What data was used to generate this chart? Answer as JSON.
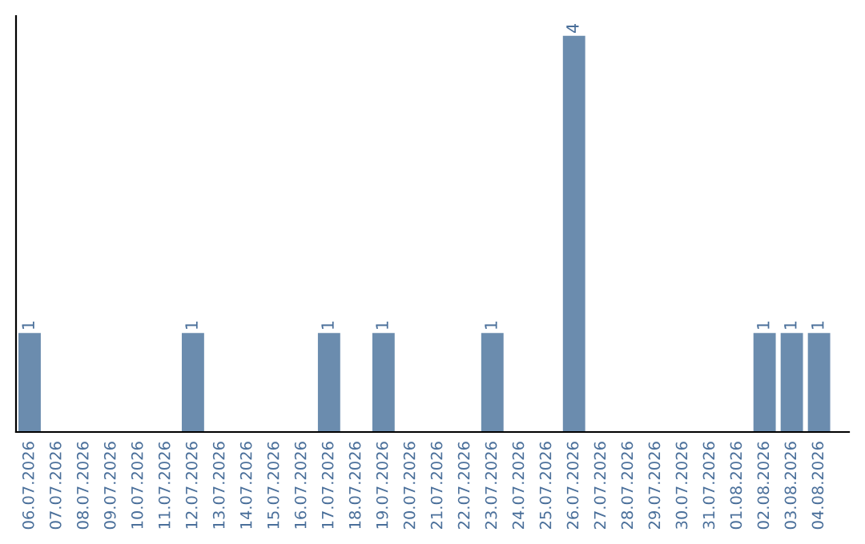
{
  "chart_data": {
    "type": "bar",
    "categories": [
      "06.07.2026",
      "07.07.2026",
      "08.07.2026",
      "09.07.2026",
      "10.07.2026",
      "11.07.2026",
      "12.07.2026",
      "13.07.2026",
      "14.07.2026",
      "15.07.2026",
      "16.07.2026",
      "17.07.2026",
      "18.07.2026",
      "19.07.2026",
      "20.07.2026",
      "21.07.2026",
      "22.07.2026",
      "23.07.2026",
      "24.07.2026",
      "25.07.2026",
      "26.07.2026",
      "27.07.2026",
      "28.07.2026",
      "29.07.2026",
      "30.07.2026",
      "31.07.2026",
      "01.08.2026",
      "02.08.2026",
      "03.08.2026",
      "04.08.2026"
    ],
    "values": [
      1,
      0,
      0,
      0,
      0,
      0,
      1,
      0,
      0,
      0,
      0,
      1,
      0,
      1,
      0,
      0,
      0,
      1,
      0,
      0,
      4,
      0,
      0,
      0,
      0,
      0,
      0,
      1,
      1,
      1
    ],
    "value_labels": [
      "1",
      null,
      null,
      null,
      null,
      null,
      "1",
      null,
      null,
      null,
      null,
      "1",
      null,
      "1",
      null,
      null,
      null,
      "1",
      null,
      null,
      "4",
      null,
      null,
      null,
      null,
      null,
      null,
      "1",
      "1",
      "1"
    ],
    "color": "#6b8cae",
    "tick_labels": "x",
    "grid": false
  }
}
